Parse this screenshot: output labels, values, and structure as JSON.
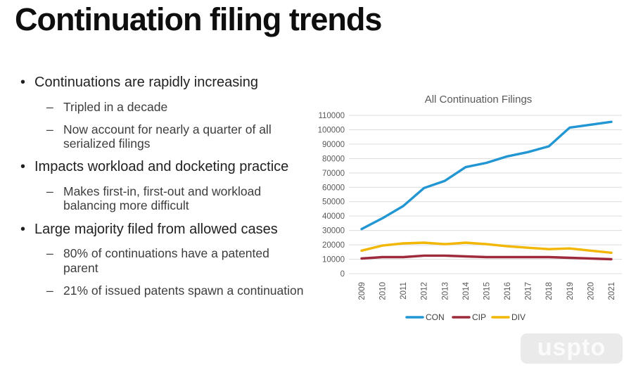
{
  "slide": {
    "title": "Continuation filing trends",
    "bullet_marker": "•",
    "sub_marker": "–",
    "bullets": [
      {
        "level": 1,
        "text": "Continuations are rapidly increasing"
      },
      {
        "level": 2,
        "text": "Tripled in a decade"
      },
      {
        "level": 2,
        "text": "Now account for nearly a quarter of all serialized filings"
      },
      {
        "level": 1,
        "text": "Impacts workload and docketing practice"
      },
      {
        "level": 2,
        "text": "Makes first-in, first-out and workload balancing more difficult"
      },
      {
        "level": 1,
        "text": "Large majority filed from allowed cases"
      },
      {
        "level": 2,
        "text": "80% of continuations have a patented parent"
      },
      {
        "level": 2,
        "text": "21% of issued patents spawn a continuation"
      }
    ],
    "watermark": "uspto"
  },
  "chart_data": {
    "type": "line",
    "title": "All Continuation Filings",
    "xlabel": "",
    "ylabel": "",
    "x": [
      "2009",
      "2010",
      "2011",
      "2012",
      "2013",
      "2014",
      "2015",
      "2016",
      "2017",
      "2018",
      "2019",
      "2020",
      "2021"
    ],
    "series": [
      {
        "name": "CON",
        "color": "#2196D3",
        "values": [
          31000,
          38500,
          47000,
          59500,
          64500,
          74000,
          77000,
          81500,
          84500,
          88500,
          101500,
          103500,
          105500
        ]
      },
      {
        "name": "CIP",
        "color": "#9E2B3B",
        "values": [
          10500,
          11500,
          11500,
          12500,
          12500,
          12000,
          11500,
          11500,
          11500,
          11500,
          11000,
          10500,
          10000
        ]
      },
      {
        "name": "DIV",
        "color": "#F2B705",
        "values": [
          16000,
          19500,
          21000,
          21500,
          20500,
          21500,
          20500,
          19000,
          18000,
          17000,
          17500,
          16000,
          14500
        ]
      }
    ],
    "ylim": [
      0,
      110000
    ],
    "ytick_step": 10000,
    "grid": true,
    "legend_position": "bottom",
    "x_tick_rotation": -90,
    "text_color": "#595959",
    "legend_text_color": "#404040",
    "grid_color": "#DCDCDC"
  }
}
